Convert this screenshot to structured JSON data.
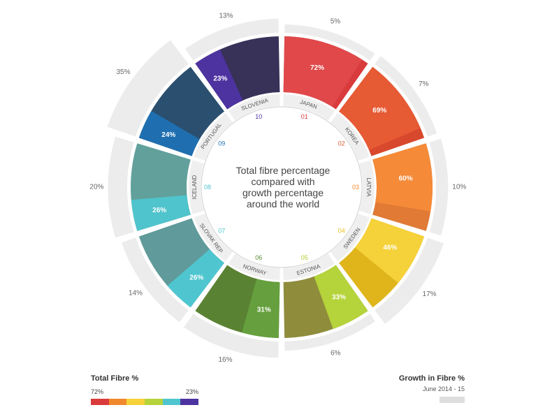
{
  "chart_data": {
    "type": "radial-bar",
    "title": "Total fibre percentage compared with growth percentage around the world",
    "title_lines": [
      "Total fibre percentage",
      "compared with",
      "growth percentage",
      "around the world"
    ],
    "countries": [
      {
        "num": "01",
        "name": "JAPAN",
        "total": 72,
        "total_label": "72%",
        "growth_label": "5%",
        "color": "#d93a3c",
        "light": "#e0484a",
        "numcolor": "#d93a3c"
      },
      {
        "num": "02",
        "name": "KOREA",
        "total": 69,
        "total_label": "69%",
        "growth_label": "7%",
        "color": "#d8482c",
        "light": "#e65a34",
        "numcolor": "#e05a30"
      },
      {
        "num": "03",
        "name": "LATVIA",
        "total": 60,
        "total_label": "60%",
        "growth_label": "10%",
        "color": "#e07a35",
        "light": "#f58a38",
        "numcolor": "#f0882c"
      },
      {
        "num": "04",
        "name": "SWEDEN",
        "total": 46,
        "total_label": "46%",
        "growth_label": "17%",
        "color": "#e0b51c",
        "light": "#f5d13a",
        "numcolor": "#e8c020"
      },
      {
        "num": "05",
        "name": "ESTONIA",
        "total": 33,
        "total_label": "33%",
        "growth_label": "6%",
        "color": "#8f8c3c",
        "light": "#b5d33a",
        "numcolor": "#b5cc30"
      },
      {
        "num": "06",
        "name": "NORWAY",
        "total": 31,
        "total_label": "31%",
        "growth_label": "16%",
        "color": "#5a8233",
        "light": "#66a03e",
        "numcolor": "#5a8a33"
      },
      {
        "num": "07",
        "name": "SLOVAK REP",
        "total": 26,
        "total_label": "26%",
        "growth_label": "14%",
        "color": "#609a9a",
        "light": "#4fc6cf",
        "numcolor": "#4fc6cf"
      },
      {
        "num": "08",
        "name": "ICELAND",
        "total": 26,
        "total_label": "26%",
        "growth_label": "20%",
        "color": "#62a09c",
        "light": "#4fc4cc",
        "numcolor": "#4fc4cc"
      },
      {
        "num": "09",
        "name": "PORTUGAL",
        "total": 24,
        "total_label": "24%",
        "growth_label": "35%",
        "color": "#2b4f6e",
        "light": "#1f6fb0",
        "numcolor": "#1f6fb0"
      },
      {
        "num": "10",
        "name": "SLOVENIA",
        "total": 23,
        "total_label": "23%",
        "growth_label": "13%",
        "color": "#383158",
        "light": "#4d33a0",
        "numcolor": "#4d33a0"
      }
    ],
    "legend": {
      "total_title": "Total Fibre %",
      "total_max": "72%",
      "total_min": "23%",
      "total_swatches": [
        "#d93a3c",
        "#f0882c",
        "#f5d13a",
        "#b5d33a",
        "#4fc6cf",
        "#4d33a0"
      ],
      "growth_title": "Growth in Fibre %",
      "growth_period": "June 2014 - 15",
      "growth_color": "#dedede"
    }
  }
}
